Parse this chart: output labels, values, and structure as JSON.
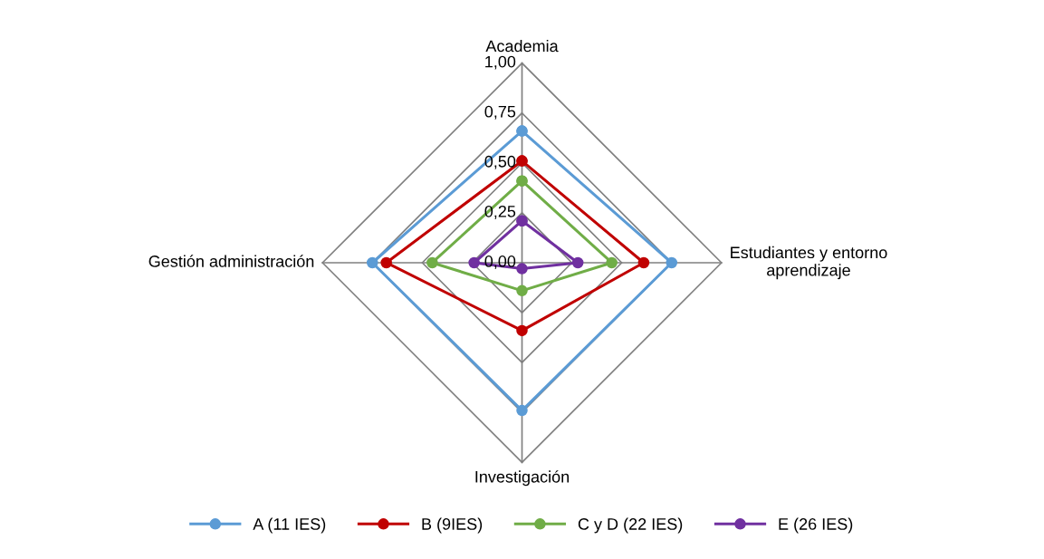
{
  "chart_data": {
    "type": "radar",
    "categories": [
      "Academia",
      "Estudiantes y entorno\naprendizaje",
      "Investigación",
      "Gestión administración"
    ],
    "ylim": [
      0,
      1
    ],
    "yticks": [
      {
        "value": 0,
        "label": "0,00"
      },
      {
        "value": 0.25,
        "label": "0,25"
      },
      {
        "value": 0.5,
        "label": "0,50"
      },
      {
        "value": 0.75,
        "label": "0,75"
      },
      {
        "value": 1,
        "label": "1,00"
      }
    ],
    "grid": true,
    "marker": "circle",
    "legend": "bottom",
    "series": [
      {
        "name": "A (11 IES)",
        "color": "#5b9bd5",
        "values": [
          0.66,
          0.75,
          0.74,
          0.75
        ]
      },
      {
        "name": "B (9IES)",
        "color": "#c00000",
        "values": [
          0.51,
          0.61,
          0.34,
          0.68
        ]
      },
      {
        "name": "C y D (22 IES)",
        "color": "#70ad47",
        "values": [
          0.41,
          0.45,
          0.14,
          0.45
        ]
      },
      {
        "name": "E (26 IES)",
        "color": "#7030a0",
        "values": [
          0.21,
          0.28,
          0.03,
          0.24
        ]
      }
    ]
  }
}
